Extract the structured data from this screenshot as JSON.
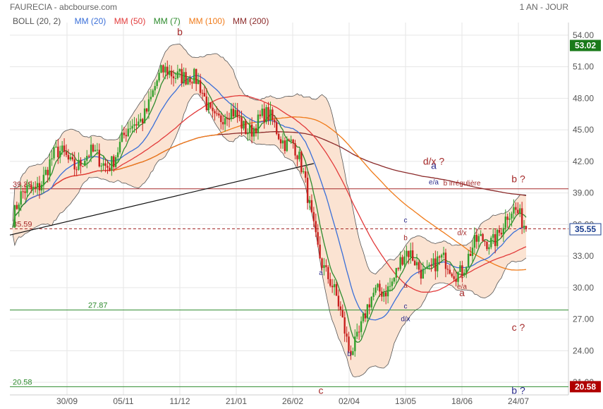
{
  "header": {
    "title": "FAURECIA - abcbourse.com",
    "period": "1 AN - JOUR"
  },
  "legend": [
    {
      "label": "BOLL (20, 2)",
      "color": "#555555"
    },
    {
      "label": "MM (20)",
      "color": "#3a6fd8"
    },
    {
      "label": "MM (50)",
      "color": "#e23b3b"
    },
    {
      "label": "MM (7)",
      "color": "#2e8b2e"
    },
    {
      "label": "MM (100)",
      "color": "#f07b1a"
    },
    {
      "label": "MM (200)",
      "color": "#8b2a2a"
    }
  ],
  "colors": {
    "up": "#33a02c",
    "down": "#c8201e",
    "band_fill": "#fbe3d2",
    "band_line": "#555555",
    "mm20": "#3a6fd8",
    "mm50": "#e23b3b",
    "mm7": "#2e8b2e",
    "mm100": "#f07b1a",
    "mm200": "#8b2a2a",
    "level_red": "#a52a2a",
    "level_green": "#2e8b2e",
    "label_red": "#a52a2a",
    "label_blue": "#2b2b8c",
    "last_price_bg": "#b00000",
    "badge_green": "#1a7a1a"
  },
  "chart_data": {
    "type": "candlestick",
    "x_tick_labels": [
      "30/09",
      "05/11",
      "11/12",
      "21/01",
      "26/02",
      "02/04",
      "13/05",
      "18/06",
      "24/07"
    ],
    "y_ticks": [
      21,
      24,
      27,
      30,
      33,
      36,
      39,
      42,
      45,
      48,
      51,
      54
    ],
    "y_tick_labels": [
      "21.00",
      "24.00",
      "27.00",
      "30.00",
      "33.00",
      "36.00",
      "39.00",
      "42.00",
      "45.00",
      "48.00",
      "51.00",
      "54.00"
    ],
    "ylim": [
      19.8,
      55.2
    ],
    "grid": true,
    "price_badges": [
      {
        "label": "53.02",
        "value": 53.02,
        "kind": "green"
      },
      {
        "label": "35.55",
        "value": 35.55,
        "kind": "blue"
      },
      {
        "label": "20.58",
        "value": 20.58,
        "kind": "red"
      }
    ],
    "levels": [
      {
        "label": "39.39",
        "value": 39.39,
        "style": "solid",
        "color": "red"
      },
      {
        "label": "35.59",
        "value": 35.59,
        "style": "dashed",
        "color": "red"
      },
      {
        "label": "27.87",
        "value": 27.87,
        "style": "solid",
        "color": "green"
      },
      {
        "label": "20.58",
        "value": 20.58,
        "style": "solid",
        "color": "green"
      }
    ],
    "trendline": {
      "from": {
        "x": "start",
        "y": 35.0
      },
      "to": {
        "x": "26/02",
        "y": 41.8
      }
    },
    "key_closes": [
      {
        "x": "start",
        "y": 36.5
      },
      {
        "x": "30/09",
        "y": 42.3
      },
      {
        "x": "05/11",
        "y": 44.0
      },
      {
        "x": "11/12",
        "y": 50.5
      },
      {
        "x": "21/01",
        "y": 46.5
      },
      {
        "x": "26/02",
        "y": 43.0
      },
      {
        "x": "02/04",
        "y": 25.5
      },
      {
        "x": "13/05",
        "y": 31.5
      },
      {
        "x": "18/06",
        "y": 33.5
      },
      {
        "x": "24/07",
        "y": 35.55
      }
    ],
    "annotations": [
      {
        "text": "b",
        "near": "11/12",
        "y": 54.0,
        "color": "red",
        "size": "large"
      },
      {
        "text": "a",
        "near": "26/02-02/04",
        "y": 31.2,
        "color": "blue",
        "size": "small"
      },
      {
        "text": "b",
        "near": "02/04",
        "y": 23.5,
        "color": "blue",
        "size": "small"
      },
      {
        "text": "c",
        "near": "26/02-02/04",
        "y": 19.9,
        "color": "red",
        "size": "large"
      },
      {
        "text": "a",
        "near": "13/05",
        "y": 30.0,
        "color": "red",
        "size": "small"
      },
      {
        "text": "b",
        "near": "13/05",
        "y": 34.5,
        "color": "red",
        "size": "small"
      },
      {
        "text": "c",
        "near": "13/05",
        "y": 36.2,
        "color": "blue",
        "size": "small"
      },
      {
        "text": "c",
        "near": "13/05",
        "y": 28.0,
        "color": "blue",
        "size": "small"
      },
      {
        "text": "d/x",
        "near": "13/05",
        "y": 26.8,
        "color": "blue",
        "size": "small"
      },
      {
        "text": "a",
        "near": "13/05-18/06",
        "y": 41.3,
        "color": "blue",
        "size": "large"
      },
      {
        "text": "d/x ?",
        "near": "13/05-18/06",
        "y": 41.7,
        "color": "red",
        "size": "large"
      },
      {
        "text": "e/a",
        "near": "13/05-18/06",
        "y": 39.8,
        "color": "blue",
        "size": "small"
      },
      {
        "text": "b irrégulière",
        "near": "18/06",
        "y": 39.7,
        "color": "red",
        "size": "small"
      },
      {
        "text": "d/x",
        "near": "18/06",
        "y": 35.0,
        "color": "red",
        "size": "small"
      },
      {
        "text": "c",
        "near": "18/06",
        "y": 30.9,
        "color": "red",
        "size": "small"
      },
      {
        "text": "e/a",
        "near": "18/06",
        "y": 29.9,
        "color": "red",
        "size": "small"
      },
      {
        "text": "a",
        "near": "18/06",
        "y": 29.2,
        "color": "red",
        "size": "large"
      },
      {
        "text": "b ?",
        "near": "24/07",
        "y": 40.0,
        "color": "red",
        "size": "large"
      },
      {
        "text": "c ?",
        "near": "24/07",
        "y": 25.9,
        "color": "red",
        "size": "large"
      },
      {
        "text": "b ?",
        "near": "24/07",
        "y": 19.9,
        "color": "blue",
        "size": "large"
      }
    ]
  }
}
